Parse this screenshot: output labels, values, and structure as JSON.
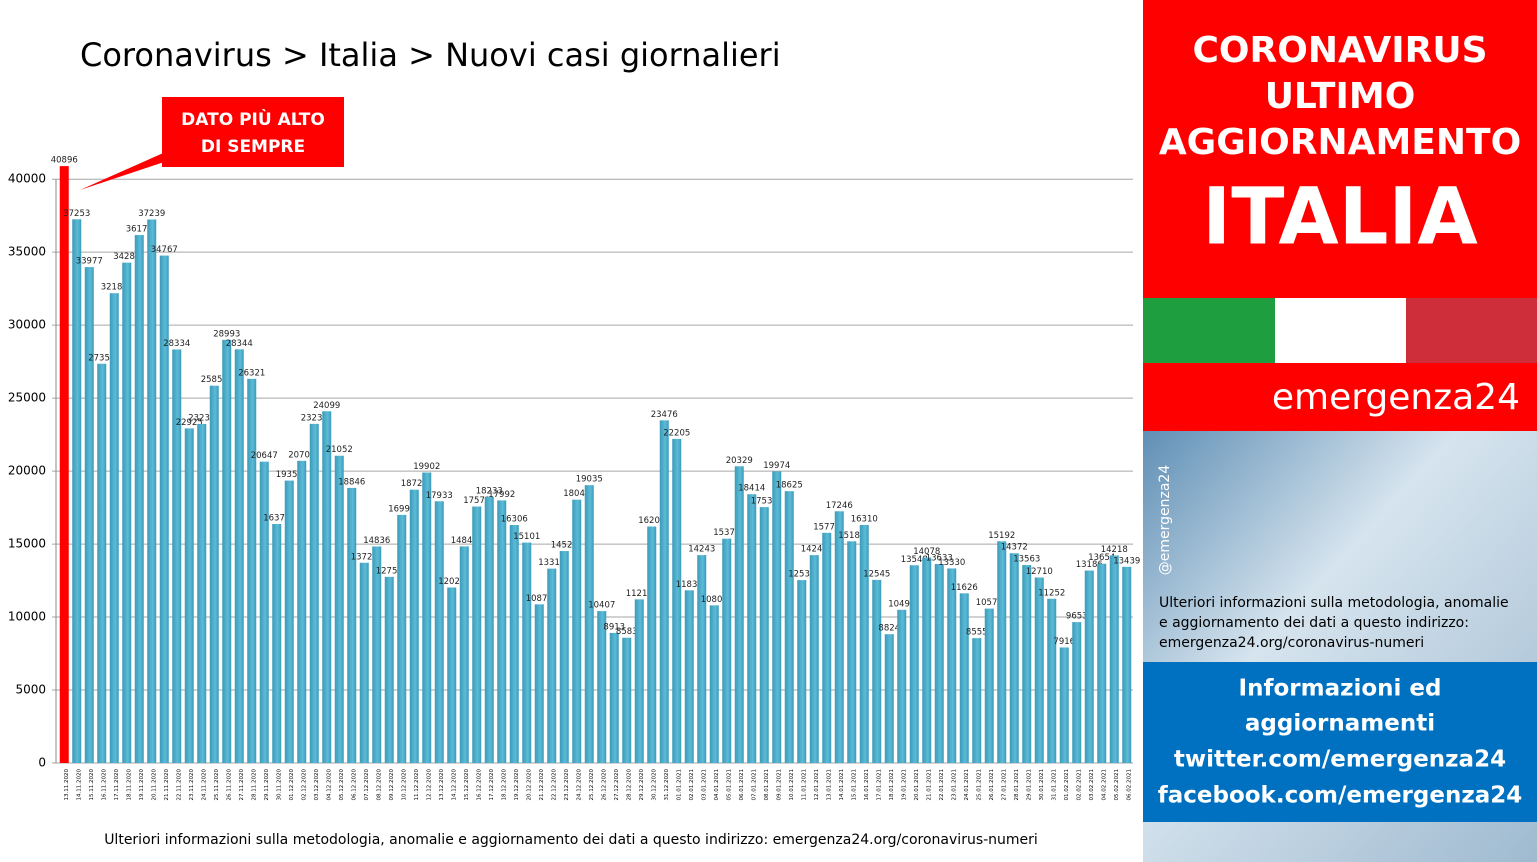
{
  "chart_data": {
    "type": "bar",
    "title": "Coronavirus > Italia > Nuovi casi giornalieri",
    "annotation": "DATO PIÙ ALTO DI SEMPRE",
    "footnote": "Ulteriori informazioni sulla metodologia, anomalie e aggiornamento dei dati a questo indirizzo: emergenza24.org/coronavirus-numeri",
    "color": "#4bacc6",
    "highlight_color": "#ff0000",
    "grid": true,
    "ylim": [
      0,
      42000
    ],
    "yticks": [
      0,
      5000,
      10000,
      15000,
      20000,
      25000,
      30000,
      35000,
      40000
    ],
    "categories": [
      "13.11.2020",
      "14.11.2020",
      "15.11.2020",
      "16.11.2020",
      "17.11.2020",
      "18.11.2020",
      "19.11.2020",
      "20.11.2020",
      "21.11.2020",
      "22.11.2020",
      "23.11.2020",
      "24.11.2020",
      "25.11.2020",
      "26.11.2020",
      "27.11.2020",
      "28.11.2020",
      "29.11.2020",
      "30.11.2020",
      "01.12.2020",
      "02.12.2020",
      "03.12.2020",
      "04.12.2020",
      "05.12.2020",
      "06.12.2020",
      "07.12.2020",
      "08.12.2020",
      "09.12.2020",
      "10.12.2020",
      "11.12.2020",
      "12.12.2020",
      "13.12.2020",
      "14.12.2020",
      "15.12.2020",
      "16.12.2020",
      "17.12.2020",
      "18.12.2020",
      "19.12.2020",
      "20.12.2020",
      "21.12.2020",
      "22.12.2020",
      "23.12.2020",
      "24.12.2020",
      "25.12.2020",
      "26.12.2020",
      "27.12.2020",
      "28.12.2020",
      "29.12.2020",
      "30.12.2020",
      "31.12.2020",
      "01.01.2021",
      "02.01.2021",
      "03.01.2021",
      "04.01.2021",
      "05.01.2021",
      "06.01.2021",
      "07.01.2021",
      "08.01.2021",
      "09.01.2021",
      "10.01.2021",
      "11.01.2021",
      "12.01.2021",
      "13.01.2021",
      "14.01.2021",
      "15.01.2021",
      "16.01.2021",
      "17.01.2021",
      "18.01.2021",
      "19.01.2021",
      "20.01.2021",
      "21.01.2021",
      "22.01.2021",
      "23.01.2021",
      "24.01.2021",
      "25.01.2021",
      "26.01.2021",
      "27.01.2021",
      "28.01.2021",
      "29.01.2021",
      "30.01.2021",
      "31.01.2021",
      "01.02.2021",
      "02.02.2021",
      "03.02.2021",
      "04.02.2021",
      "05.02.2021",
      "06.02.2021"
    ],
    "values": [
      40896,
      37253,
      33977,
      27354,
      32188,
      34283,
      36173,
      37239,
      34767,
      28334,
      22925,
      23231,
      25851,
      28993,
      28344,
      26321,
      20647,
      16374,
      19350,
      20703,
      23236,
      24099,
      21052,
      18846,
      13720,
      14836,
      12755,
      16998,
      18726,
      19902,
      17933,
      12025,
      14840,
      17572,
      18233,
      17992,
      16306,
      15101,
      10870,
      13318,
      14522,
      18040,
      19035,
      10407,
      8913,
      8583,
      11212,
      16202,
      23476,
      22205,
      11831,
      14243,
      10800,
      15370,
      20329,
      18414,
      17533,
      19974,
      18625,
      12532,
      14241,
      15771,
      17246,
      15187,
      16310,
      12545,
      8824,
      10497,
      13548,
      14078,
      13633,
      13330,
      11626,
      8555,
      10578,
      15192,
      14372,
      13563,
      12710,
      11252,
      7916,
      9653,
      13186,
      13654,
      14218,
      13439
    ]
  },
  "panel": {
    "heading": [
      "CORONAVIRUS",
      "ULTIMO",
      "AGGIORNAMENTO"
    ],
    "country": "ITALIA",
    "brand": "emergenza24",
    "handle": "@emergenza24",
    "info": [
      "Ulteriori informazioni sulla metodologia, anomalie",
      "e aggiornamento dei dati a questo indirizzo:",
      "emergenza24.org/coronavirus-numeri"
    ],
    "social": [
      "Informazioni ed",
      "aggiornamenti",
      "twitter.com/emergenza24",
      "facebook.com/emergenza24"
    ]
  }
}
